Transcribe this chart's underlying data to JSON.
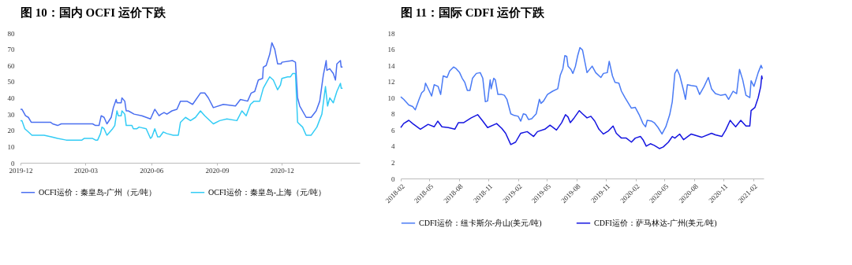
{
  "chart_data": [
    {
      "type": "line",
      "title": "图 10：国内 OCFI 运价下跌",
      "xlim": [
        "2019-12-01",
        "2021-03-20"
      ],
      "xticks": [
        "2019-12",
        "2020-03",
        "2020-06",
        "2020-09",
        "2020-12"
      ],
      "ylim": [
        0,
        80
      ],
      "yticks": [
        0,
        10,
        20,
        30,
        40,
        50,
        60,
        70,
        80
      ],
      "legend": "bottom",
      "series": [
        {
          "name": "OCFI运价：秦皇岛-广州（元/吨）",
          "color": "#4a6ff0",
          "x": [
            "2019-12-01",
            "2019-12-03",
            "2019-12-08",
            "2019-12-12",
            "2019-12-16",
            "2019-12-19",
            "2020-01-12",
            "2020-01-15",
            "2020-01-22",
            "2020-01-27",
            "2020-02-03",
            "2020-03-11",
            "2020-03-15",
            "2020-03-20",
            "2020-03-23",
            "2020-03-27",
            "2020-03-31",
            "2020-04-06",
            "2020-04-09",
            "2020-04-13",
            "2020-04-14",
            "2020-04-20",
            "2020-04-21",
            "2020-04-25",
            "2020-04-27",
            "2020-04-30",
            "2020-05-08",
            "2020-05-19",
            "2020-05-31",
            "2020-06-06",
            "2020-06-12",
            "2020-06-15",
            "2020-06-19",
            "2020-06-23",
            "2020-06-30",
            "2020-07-07",
            "2020-07-12",
            "2020-07-21",
            "2020-07-29",
            "2020-08-09",
            "2020-08-15",
            "2020-08-20",
            "2020-08-27",
            "2020-09-10",
            "2020-09-27",
            "2020-10-04",
            "2020-10-14",
            "2020-10-19",
            "2020-10-24",
            "2020-10-29",
            "2020-11-04",
            "2020-11-05",
            "2020-11-09",
            "2020-11-14",
            "2020-11-17",
            "2020-11-21",
            "2020-11-25",
            "2020-11-30",
            "2020-12-01",
            "2020-12-16",
            "2020-12-20",
            "2020-12-23",
            "2020-12-26",
            "2021-01-04",
            "2021-01-11",
            "2021-01-18",
            "2021-01-23",
            "2021-01-28",
            "2021-02-01",
            "2021-02-02",
            "2021-02-06",
            "2021-02-11",
            "2021-02-14",
            "2021-02-16",
            "2021-02-21",
            "2021-02-22",
            "2021-02-24"
          ],
          "values": [
            33,
            33,
            29,
            28,
            25,
            25,
            25,
            24,
            23,
            24,
            24,
            24,
            23,
            23,
            29,
            28,
            24,
            28,
            34,
            39,
            37,
            37,
            40,
            38,
            32,
            32,
            30,
            29,
            27,
            33,
            29,
            30,
            31,
            30,
            32,
            33,
            38,
            38,
            36,
            43,
            43,
            40,
            34,
            36,
            35,
            39,
            38,
            43,
            44,
            51,
            52,
            59,
            60,
            67,
            74,
            70,
            61,
            61,
            62,
            63,
            62,
            40,
            35,
            28,
            28,
            32,
            38,
            54,
            63,
            57,
            58,
            55,
            51,
            61,
            63,
            59,
            59
          ]
        },
        {
          "name": "OCFI运价：秦皇岛-上海（元/吨）",
          "color": "#33ccf5",
          "x": [
            "2019-12-01",
            "2019-12-03",
            "2019-12-07",
            "2019-12-12",
            "2019-12-17",
            "2020-01-03",
            "2020-01-13",
            "2020-01-22",
            "2020-02-03",
            "2020-02-25",
            "2020-02-28",
            "2020-03-11",
            "2020-03-15",
            "2020-03-18",
            "2020-03-22",
            "2020-03-24",
            "2020-03-27",
            "2020-03-31",
            "2020-04-08",
            "2020-04-11",
            "2020-04-14",
            "2020-04-16",
            "2020-04-20",
            "2020-04-21",
            "2020-04-25",
            "2020-04-27",
            "2020-05-05",
            "2020-05-07",
            "2020-05-12",
            "2020-05-15",
            "2020-05-25",
            "2020-05-31",
            "2020-06-02",
            "2020-06-06",
            "2020-06-10",
            "2020-06-13",
            "2020-06-18",
            "2020-06-23",
            "2020-07-02",
            "2020-07-09",
            "2020-07-12",
            "2020-07-19",
            "2020-07-26",
            "2020-08-02",
            "2020-08-09",
            "2020-08-15",
            "2020-08-27",
            "2020-09-05",
            "2020-09-15",
            "2020-09-29",
            "2020-10-06",
            "2020-10-12",
            "2020-10-18",
            "2020-10-23",
            "2020-10-31",
            "2020-11-05",
            "2020-11-10",
            "2020-11-14",
            "2020-11-19",
            "2020-11-25",
            "2020-11-29",
            "2020-12-01",
            "2020-12-09",
            "2020-12-13",
            "2020-12-16",
            "2020-12-20",
            "2020-12-23",
            "2020-12-30",
            "2021-01-04",
            "2021-01-11",
            "2021-01-19",
            "2021-01-26",
            "2021-01-31",
            "2021-02-03",
            "2021-02-06",
            "2021-02-11",
            "2021-02-16",
            "2021-02-21",
            "2021-02-22",
            "2021-02-24"
          ],
          "values": [
            26,
            26,
            21,
            19,
            17,
            17,
            16,
            15,
            14,
            14,
            15,
            15,
            14,
            14,
            18,
            22,
            21,
            17,
            21,
            23,
            32,
            29,
            29,
            32,
            30,
            23,
            23,
            21,
            21,
            22,
            21,
            15,
            16,
            21,
            16,
            16,
            19,
            18,
            17,
            17,
            25,
            28,
            26,
            28,
            32,
            29,
            24,
            26,
            27,
            26,
            32,
            29,
            36,
            38,
            38,
            46,
            50,
            53,
            51,
            45,
            48,
            52,
            53,
            53,
            55,
            55,
            25,
            22,
            17,
            17,
            22,
            30,
            47,
            35,
            40,
            37,
            44,
            49,
            46,
            46
          ]
        }
      ]
    },
    {
      "type": "line",
      "title": "图 11：国际 CDFI 运价下跌",
      "xlim": [
        "2018-02-01",
        "2021-03-05"
      ],
      "xticks": [
        "2018-02",
        "2018-05",
        "2018-08",
        "2018-11",
        "2019-02",
        "2019-05",
        "2019-08",
        "2019-11",
        "2020-02",
        "2020-05",
        "2020-08",
        "2020-11",
        "2021-02"
      ],
      "ylim": [
        0,
        18
      ],
      "yticks": [
        0,
        2,
        4,
        6,
        8,
        10,
        12,
        14,
        16,
        18
      ],
      "legend": "bottom",
      "series": [
        {
          "name": "CDFI运价：纽卡斯尔-舟山(美元/吨)",
          "color": "#4a7bf5",
          "x": [
            "2018-02-01",
            "2018-02-10",
            "2018-02-26",
            "2018-03-10",
            "2018-03-18",
            "2018-03-30",
            "2018-04-07",
            "2018-04-15",
            "2018-04-19",
            "2018-05-01",
            "2018-05-08",
            "2018-05-16",
            "2018-05-28",
            "2018-06-05",
            "2018-06-13",
            "2018-06-25",
            "2018-07-03",
            "2018-07-15",
            "2018-07-23",
            "2018-08-03",
            "2018-08-11",
            "2018-08-19",
            "2018-08-27",
            "2018-09-04",
            "2018-09-12",
            "2018-09-24",
            "2018-10-06",
            "2018-10-14",
            "2018-10-22",
            "2018-10-29",
            "2018-11-06",
            "2018-11-09",
            "2018-11-17",
            "2018-11-22",
            "2018-11-30",
            "2018-12-12",
            "2018-12-20",
            "2018-12-28",
            "2019-01-09",
            "2019-01-20",
            "2019-02-01",
            "2019-02-09",
            "2019-02-17",
            "2019-02-25",
            "2019-03-05",
            "2019-03-15",
            "2019-03-29",
            "2019-04-08",
            "2019-04-13",
            "2019-04-21",
            "2019-05-03",
            "2019-05-19",
            "2019-06-04",
            "2019-06-12",
            "2019-06-20",
            "2019-06-26",
            "2019-07-02",
            "2019-07-06",
            "2019-07-15",
            "2019-07-21",
            "2019-07-29",
            "2019-08-05",
            "2019-08-12",
            "2019-08-20",
            "2019-08-28",
            "2019-09-03",
            "2019-09-19",
            "2019-09-30",
            "2019-10-16",
            "2019-10-24",
            "2019-11-05",
            "2019-11-11",
            "2019-11-21",
            "2019-11-29",
            "2019-12-11",
            "2019-12-19",
            "2019-12-30",
            "2020-01-19",
            "2020-01-31",
            "2020-02-12",
            "2020-02-24",
            "2020-03-03",
            "2020-03-08",
            "2020-03-22",
            "2020-03-30",
            "2020-04-11",
            "2020-04-23",
            "2020-05-05",
            "2020-05-17",
            "2020-05-25",
            "2020-06-02",
            "2020-06-09",
            "2020-06-17",
            "2020-06-29",
            "2020-07-05",
            "2020-07-11",
            "2020-07-23",
            "2020-08-08",
            "2020-08-18",
            "2020-09-01",
            "2020-09-14",
            "2020-09-24",
            "2020-10-06",
            "2020-10-22",
            "2020-11-07",
            "2020-11-16",
            "2020-11-30",
            "2020-12-11",
            "2020-12-20",
            "2020-12-30",
            "2021-01-09",
            "2021-01-21",
            "2021-01-25",
            "2021-02-03",
            "2021-02-16",
            "2021-02-25",
            "2021-03-01"
          ],
          "values": [
            10.1,
            9.8,
            9.1,
            8.9,
            8.5,
            9.8,
            10.6,
            10.9,
            11.8,
            10.8,
            10.2,
            11.6,
            11.4,
            10.4,
            12.7,
            12.5,
            13.3,
            13.8,
            13.6,
            13.1,
            12.4,
            11.9,
            10.9,
            10.9,
            12.4,
            13.0,
            13.1,
            12.4,
            9.5,
            9.6,
            12.2,
            11.1,
            12.4,
            12.2,
            10.4,
            10.4,
            10.3,
            9.8,
            8.0,
            7.8,
            7.7,
            7.1,
            8.0,
            7.9,
            7.3,
            7.4,
            8.0,
            9.8,
            9.3,
            9.6,
            10.4,
            10.8,
            11.1,
            12.8,
            13.6,
            15.2,
            15.1,
            13.9,
            13.5,
            13.0,
            13.9,
            15.2,
            16.2,
            15.9,
            14.3,
            13.1,
            13.9,
            13.1,
            12.5,
            13.0,
            13.1,
            14.5,
            12.7,
            11.9,
            11.8,
            10.8,
            10.0,
            8.7,
            8.8,
            7.9,
            6.8,
            6.4,
            7.2,
            7.1,
            6.9,
            6.3,
            5.5,
            6.4,
            7.9,
            9.5,
            13.0,
            13.5,
            12.8,
            10.9,
            9.8,
            11.6,
            11.5,
            11.4,
            10.4,
            11.4,
            12.5,
            11.1,
            10.5,
            10.3,
            10.4,
            9.8,
            10.8,
            10.5,
            13.5,
            12.2,
            10.3,
            10.0,
            12.1,
            11.4,
            13.1,
            14.0,
            13.6
          ]
        },
        {
          "name": "CDFI运价：萨马林达-广州(美元/吨)",
          "color": "#1515e0",
          "x": [
            "2018-02-01",
            "2018-02-10",
            "2018-02-26",
            "2018-03-10",
            "2018-04-03",
            "2018-04-27",
            "2018-05-16",
            "2018-05-27",
            "2018-06-09",
            "2018-06-29",
            "2018-07-19",
            "2018-07-30",
            "2018-08-15",
            "2018-09-08",
            "2018-09-28",
            "2018-10-14",
            "2018-10-29",
            "2018-11-26",
            "2018-12-12",
            "2018-12-24",
            "2019-01-09",
            "2019-01-24",
            "2019-02-09",
            "2019-03-01",
            "2019-03-21",
            "2019-04-02",
            "2019-04-25",
            "2019-05-11",
            "2019-05-31",
            "2019-06-16",
            "2019-06-28",
            "2019-07-06",
            "2019-07-13",
            "2019-07-25",
            "2019-08-10",
            "2019-08-20",
            "2019-09-03",
            "2019-09-15",
            "2019-09-27",
            "2019-10-10",
            "2019-10-24",
            "2019-11-09",
            "2019-11-23",
            "2019-12-03",
            "2019-12-19",
            "2020-01-03",
            "2020-01-19",
            "2020-01-31",
            "2020-02-16",
            "2020-02-24",
            "2020-03-05",
            "2020-03-18",
            "2020-03-30",
            "2020-04-15",
            "2020-04-27",
            "2020-05-13",
            "2020-05-25",
            "2020-06-02",
            "2020-06-17",
            "2020-06-29",
            "2020-07-23",
            "2020-08-24",
            "2020-09-24",
            "2020-10-06",
            "2020-10-26",
            "2020-11-07",
            "2020-11-21",
            "2020-11-29",
            "2020-12-08",
            "2020-12-24",
            "2021-01-09",
            "2021-01-21",
            "2021-01-25",
            "2021-02-06",
            "2021-02-16",
            "2021-02-24",
            "2021-02-27",
            "2021-03-01"
          ],
          "values": [
            6.3,
            6.8,
            7.2,
            6.8,
            6.1,
            6.7,
            6.4,
            7.1,
            6.4,
            6.3,
            6.1,
            6.9,
            6.9,
            7.5,
            7.9,
            7.1,
            6.3,
            6.8,
            6.2,
            5.6,
            4.2,
            4.5,
            5.6,
            5.8,
            5.2,
            5.8,
            6.1,
            6.6,
            6.0,
            6.9,
            7.9,
            7.6,
            6.9,
            7.5,
            8.4,
            8.0,
            7.5,
            7.7,
            7.1,
            6.1,
            5.5,
            5.9,
            6.5,
            5.6,
            5.0,
            5.0,
            4.5,
            5.0,
            5.2,
            4.8,
            4.0,
            4.3,
            4.1,
            3.7,
            3.9,
            4.5,
            5.2,
            5.0,
            5.5,
            4.8,
            5.5,
            5.1,
            5.6,
            5.4,
            5.2,
            6.0,
            7.2,
            6.8,
            6.4,
            7.2,
            6.5,
            6.5,
            8.4,
            8.8,
            10.0,
            11.4,
            12.7,
            12.3
          ]
        }
      ]
    }
  ]
}
